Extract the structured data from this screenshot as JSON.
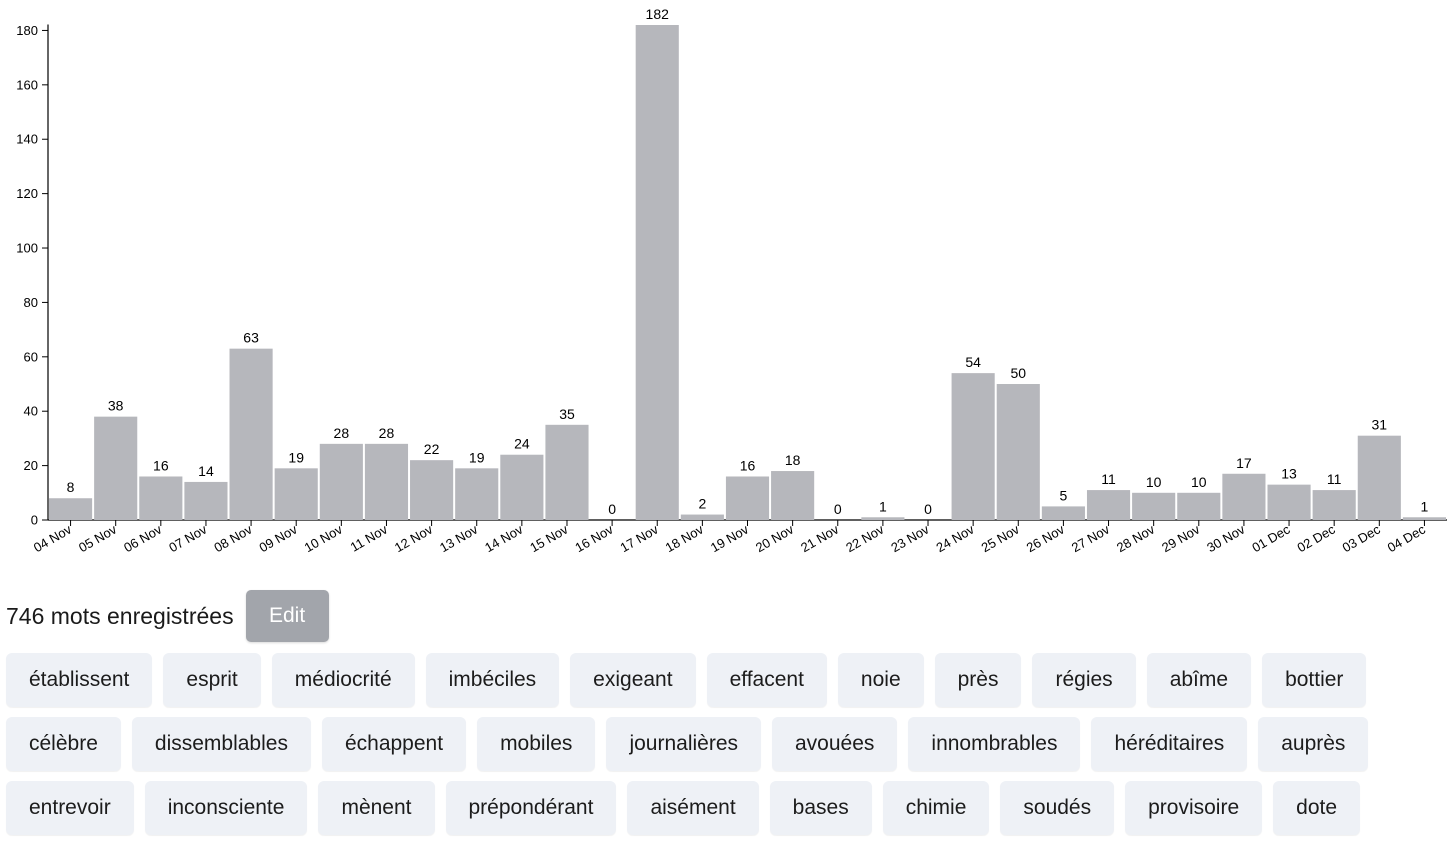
{
  "chart_data": {
    "type": "bar",
    "categories": [
      "04 Nov",
      "05 Nov",
      "06 Nov",
      "07 Nov",
      "08 Nov",
      "09 Nov",
      "10 Nov",
      "11 Nov",
      "12 Nov",
      "13 Nov",
      "14 Nov",
      "15 Nov",
      "16 Nov",
      "17 Nov",
      "18 Nov",
      "19 Nov",
      "20 Nov",
      "21 Nov",
      "22 Nov",
      "23 Nov",
      "24 Nov",
      "25 Nov",
      "26 Nov",
      "27 Nov",
      "28 Nov",
      "29 Nov",
      "30 Nov",
      "01 Dec",
      "02 Dec",
      "03 Dec",
      "04 Dec"
    ],
    "values": [
      8,
      38,
      16,
      14,
      63,
      19,
      28,
      28,
      22,
      19,
      24,
      35,
      0,
      182,
      2,
      16,
      18,
      0,
      1,
      0,
      54,
      50,
      5,
      11,
      10,
      10,
      17,
      13,
      11,
      31,
      1
    ],
    "y_ticks": [
      0,
      20,
      40,
      60,
      80,
      100,
      120,
      140,
      160,
      180
    ],
    "ylim": [
      0,
      182
    ],
    "bar_color": "#b6b7bc",
    "grid": false
  },
  "summary": {
    "count_text": "746 mots enregistrées",
    "edit_label": "Edit"
  },
  "words": [
    [
      "établissent",
      "esprit",
      "médiocrité",
      "imbéciles",
      "exigeant",
      "effacent",
      "noie",
      "près",
      "régies",
      "abîme",
      "bottier"
    ],
    [
      "célèbre",
      "dissemblables",
      "échappent",
      "mobiles",
      "journalières",
      "avouées",
      "innombrables",
      "héréditaires",
      "auprès"
    ],
    [
      "entrevoir",
      "inconsciente",
      "mènent",
      "prépondérant",
      "aisément",
      "bases",
      "chimie",
      "soudés",
      "provisoire",
      "dote"
    ]
  ]
}
